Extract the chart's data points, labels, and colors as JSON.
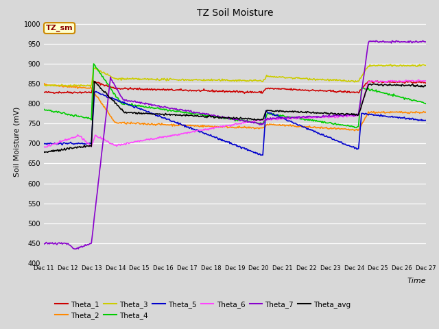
{
  "title": "TZ Soil Moisture",
  "xlabel": "Time",
  "ylabel": "Soil Moisture (mV)",
  "ylim": [
    400,
    1010
  ],
  "yticks": [
    400,
    450,
    500,
    550,
    600,
    650,
    700,
    750,
    800,
    850,
    900,
    950,
    1000
  ],
  "bg_color": "#d8d8d8",
  "plot_bg_color": "#d8d8d8",
  "legend_label": "TZ_sm",
  "series_colors": {
    "Theta_1": "#cc0000",
    "Theta_2": "#ff8800",
    "Theta_3": "#cccc00",
    "Theta_4": "#00cc00",
    "Theta_5": "#0000cc",
    "Theta_6": "#ff44ff",
    "Theta_7": "#8800cc",
    "Theta_avg": "#000000"
  },
  "num_points": 500,
  "x_start": 11,
  "x_end": 27,
  "xtick_positions": [
    11,
    12,
    13,
    14,
    15,
    16,
    17,
    18,
    19,
    20,
    21,
    22,
    23,
    24,
    25,
    26,
    27
  ],
  "xtick_labels": [
    "Dec 11",
    "Dec 12",
    "Dec 13",
    "Dec 14",
    "Dec 15",
    "Dec 16",
    "Dec 17",
    "Dec 18",
    "Dec 19",
    "Dec 20",
    "Dec 21",
    "Dec 22",
    "Dec 23",
    "Dec 24",
    "Dec 25",
    "Dec 26",
    "Dec 27"
  ]
}
